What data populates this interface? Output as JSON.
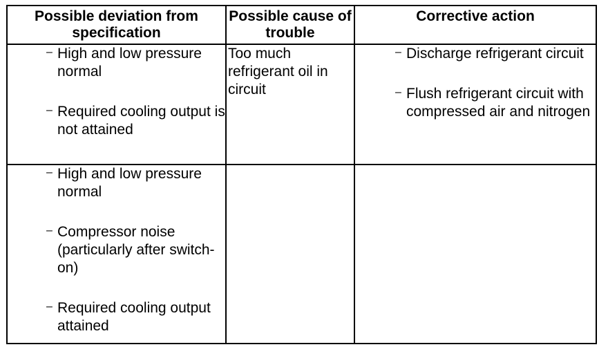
{
  "headers": {
    "deviation": "Possible deviation from specification",
    "cause": "Possible cause of trouble",
    "action": "Corrective action"
  },
  "rows": [
    {
      "deviation": [
        "High and low pressure normal",
        "Required cooling output is not attained"
      ],
      "cause": "Too much refrigerant oil in circuit",
      "action": [
        "Discharge refrigerant circuit",
        "Flush refrigerant circuit with compressed air and nitrogen"
      ]
    },
    {
      "deviation": [
        "High and low pressure normal",
        "Compressor noise (particularly after switch-on)",
        "Required cooling output attained"
      ],
      "cause": "",
      "action": []
    }
  ],
  "bullet_glyph": "–"
}
